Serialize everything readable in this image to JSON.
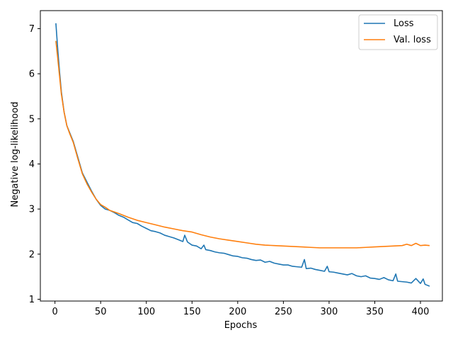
{
  "chart_data": {
    "type": "line",
    "title": "",
    "xlabel": "Epochs",
    "ylabel": "Negative log-likelihood",
    "xlim": [
      -16,
      424
    ],
    "ylim": [
      0.96,
      7.4
    ],
    "xticks": [
      0,
      50,
      100,
      150,
      200,
      250,
      300,
      350,
      400
    ],
    "yticks": [
      1,
      2,
      3,
      4,
      5,
      6,
      7
    ],
    "grid": false,
    "legend_position": "top-right",
    "series": [
      {
        "name": "Loss",
        "color": "#1f77b4",
        "x": [
          1,
          3,
          5,
          7,
          10,
          13,
          16,
          20,
          25,
          30,
          35,
          40,
          45,
          50,
          55,
          60,
          65,
          70,
          75,
          80,
          85,
          90,
          95,
          100,
          105,
          110,
          115,
          120,
          125,
          130,
          135,
          140,
          142,
          145,
          150,
          155,
          160,
          163,
          165,
          170,
          175,
          180,
          185,
          190,
          195,
          200,
          205,
          210,
          215,
          220,
          225,
          230,
          235,
          240,
          245,
          250,
          255,
          260,
          265,
          270,
          273,
          275,
          280,
          285,
          290,
          295,
          298,
          300,
          305,
          310,
          315,
          320,
          325,
          330,
          335,
          340,
          345,
          350,
          355,
          360,
          365,
          370,
          373,
          375,
          380,
          385,
          390,
          395,
          400,
          403,
          405,
          410
        ],
        "y": [
          7.12,
          6.55,
          6.05,
          5.6,
          5.15,
          4.85,
          4.7,
          4.5,
          4.15,
          3.8,
          3.6,
          3.4,
          3.22,
          3.08,
          3.0,
          2.97,
          2.92,
          2.86,
          2.82,
          2.76,
          2.7,
          2.68,
          2.62,
          2.57,
          2.52,
          2.5,
          2.47,
          2.42,
          2.39,
          2.36,
          2.32,
          2.28,
          2.42,
          2.27,
          2.2,
          2.18,
          2.12,
          2.2,
          2.1,
          2.08,
          2.05,
          2.03,
          2.02,
          1.99,
          1.96,
          1.95,
          1.92,
          1.91,
          1.88,
          1.86,
          1.87,
          1.82,
          1.84,
          1.8,
          1.78,
          1.76,
          1.76,
          1.73,
          1.72,
          1.71,
          1.88,
          1.68,
          1.69,
          1.66,
          1.64,
          1.62,
          1.73,
          1.61,
          1.6,
          1.58,
          1.56,
          1.54,
          1.57,
          1.52,
          1.5,
          1.52,
          1.47,
          1.46,
          1.44,
          1.48,
          1.43,
          1.41,
          1.56,
          1.4,
          1.39,
          1.38,
          1.36,
          1.46,
          1.35,
          1.45,
          1.33,
          1.29
        ]
      },
      {
        "name": "Val. loss",
        "color": "#ff7f0e",
        "x": [
          1,
          3,
          5,
          7,
          10,
          13,
          16,
          20,
          25,
          30,
          35,
          40,
          45,
          50,
          55,
          60,
          70,
          80,
          90,
          100,
          110,
          120,
          130,
          140,
          150,
          160,
          170,
          180,
          190,
          200,
          210,
          220,
          230,
          240,
          250,
          260,
          270,
          280,
          290,
          300,
          310,
          320,
          330,
          340,
          350,
          360,
          370,
          380,
          385,
          390,
          395,
          400,
          405,
          410
        ],
        "y": [
          6.73,
          6.35,
          5.95,
          5.55,
          5.15,
          4.85,
          4.68,
          4.48,
          4.12,
          3.78,
          3.56,
          3.38,
          3.22,
          3.1,
          3.04,
          2.97,
          2.9,
          2.82,
          2.75,
          2.7,
          2.65,
          2.6,
          2.56,
          2.52,
          2.49,
          2.43,
          2.38,
          2.34,
          2.31,
          2.28,
          2.25,
          2.22,
          2.2,
          2.19,
          2.18,
          2.17,
          2.16,
          2.15,
          2.14,
          2.14,
          2.14,
          2.14,
          2.14,
          2.15,
          2.16,
          2.17,
          2.18,
          2.19,
          2.22,
          2.19,
          2.24,
          2.19,
          2.2,
          2.19
        ]
      }
    ]
  }
}
